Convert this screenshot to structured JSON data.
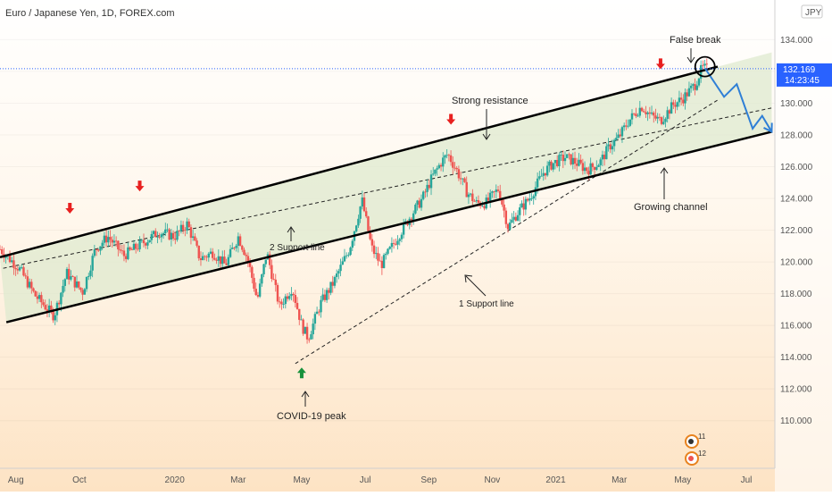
{
  "chart_data": {
    "type": "candlestick",
    "title": "Euro / Japanese Yen, 1D, FOREX.com",
    "currency_badge": "JPY",
    "y_ticks": [
      "134.000",
      "132.000",
      "130.000",
      "128.000",
      "126.000",
      "124.000",
      "122.000",
      "120.000",
      "118.000",
      "116.000",
      "114.000",
      "112.000",
      "110.000"
    ],
    "ylim": [
      107.0,
      136.5
    ],
    "x_ticks": [
      "Aug",
      "Oct",
      "2020",
      "Mar",
      "May",
      "Jul",
      "Sep",
      "Nov",
      "2021",
      "Mar",
      "May",
      "Jul"
    ],
    "xlim_months": [
      -5.5,
      18.9
    ],
    "current_price": {
      "value": "132.169",
      "countdown": "14:23:45",
      "y": 132.169
    },
    "price_path": [
      [
        -5.5,
        120.8
      ],
      [
        -4.9,
        119.6
      ],
      [
        -4.4,
        117.9
      ],
      [
        -3.8,
        116.6
      ],
      [
        -3.4,
        119.3
      ],
      [
        -2.9,
        118.1
      ],
      [
        -2.5,
        120.8
      ],
      [
        -2.1,
        121.6
      ],
      [
        -1.6,
        120.4
      ],
      [
        -1.0,
        121.2
      ],
      [
        -0.5,
        121.9
      ],
      [
        0.0,
        121.6
      ],
      [
        0.4,
        122.4
      ],
      [
        0.8,
        120.2
      ],
      [
        1.2,
        120.6
      ],
      [
        1.6,
        119.8
      ],
      [
        2.0,
        121.6
      ],
      [
        2.3,
        120.2
      ],
      [
        2.6,
        117.6
      ],
      [
        2.9,
        120.6
      ],
      [
        3.3,
        117.2
      ],
      [
        3.7,
        118.4
      ],
      [
        4.0,
        116.0
      ],
      [
        4.2,
        115.2
      ],
      [
        4.6,
        117.4
      ],
      [
        5.0,
        118.7
      ],
      [
        5.5,
        120.8
      ],
      [
        5.9,
        123.9
      ],
      [
        6.2,
        120.9
      ],
      [
        6.5,
        119.8
      ],
      [
        7.0,
        121.5
      ],
      [
        7.4,
        122.8
      ],
      [
        7.8,
        124.0
      ],
      [
        8.1,
        125.3
      ],
      [
        8.4,
        126.3
      ],
      [
        8.6,
        126.8
      ],
      [
        8.9,
        125.7
      ],
      [
        9.2,
        124.4
      ],
      [
        9.5,
        123.7
      ],
      [
        9.8,
        123.7
      ],
      [
        10.2,
        124.6
      ],
      [
        10.5,
        122.2
      ],
      [
        10.8,
        123.1
      ],
      [
        11.2,
        124.1
      ],
      [
        11.6,
        125.6
      ],
      [
        11.9,
        126.2
      ],
      [
        12.3,
        126.6
      ],
      [
        12.6,
        126.3
      ],
      [
        13.0,
        125.8
      ],
      [
        13.4,
        126.3
      ],
      [
        13.7,
        127.3
      ],
      [
        14.0,
        127.9
      ],
      [
        14.3,
        128.9
      ],
      [
        14.7,
        129.8
      ],
      [
        15.0,
        129.2
      ],
      [
        15.3,
        128.9
      ],
      [
        15.7,
        129.9
      ],
      [
        16.0,
        130.3
      ],
      [
        16.4,
        131.2
      ],
      [
        16.6,
        132.2
      ],
      [
        16.8,
        132.169
      ]
    ],
    "annotations": {
      "false_break": "False break",
      "strong_resistance": "Strong resistance",
      "growing_channel": "Growing channel",
      "support_2": "2 Support line",
      "support_1": "1 Support line",
      "covid_peak": "COVID-19 peak"
    },
    "channel": {
      "upper": {
        "x1": -5.5,
        "y1": 120.3,
        "x2": 17.1,
        "y2": 132.3
      },
      "lower": {
        "x1": -5.3,
        "y1": 116.2,
        "x2": 18.8,
        "y2": 128.2
      }
    },
    "support_line_1": {
      "x1": 3.8,
      "y1": 113.6,
      "x2": 17.1,
      "y2": 130.2
    },
    "support_line_2": {
      "x1": -5.4,
      "y1": 119.6,
      "x2": 18.8,
      "y2": 129.7
    },
    "forecast_path": [
      [
        16.7,
        132.2
      ],
      [
        17.3,
        130.4
      ],
      [
        17.7,
        131.2
      ],
      [
        18.2,
        128.4
      ],
      [
        18.5,
        129.2
      ],
      [
        18.8,
        128.2
      ]
    ],
    "resistance_touches": [
      [
        -3.3,
        122.2
      ],
      [
        -1.1,
        123.6
      ],
      [
        8.7,
        127.8
      ],
      [
        15.3,
        131.3
      ]
    ],
    "support_touch": [
      4.0,
      113.8
    ],
    "false_break_circle": [
      16.7,
      132.3
    ],
    "colors": {
      "bull": "#26a69a",
      "bear": "#ef5350",
      "channel_fill": "#dfe9cf",
      "forecast": "#2f7fd6",
      "price_line": "#2962ff",
      "arrow_red": "#e8201f",
      "arrow_green": "#17913b"
    }
  }
}
